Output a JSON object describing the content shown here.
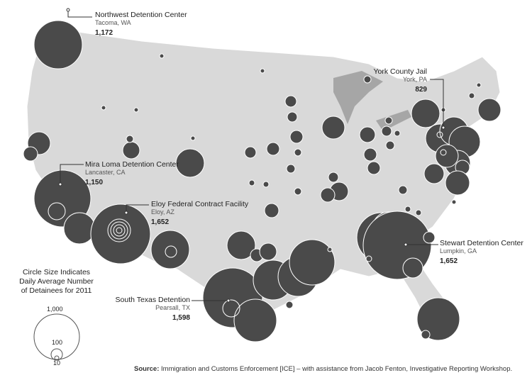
{
  "legend": {
    "title": "Circle Size Indicates Daily Average Number of Detainees for 2011",
    "sizes": [
      "1,000",
      "100",
      "10"
    ]
  },
  "facilities": [
    {
      "name": "Northwest Detention Center",
      "city": "Tacoma, WA",
      "value": "1,172"
    },
    {
      "name": "York County Jail",
      "city": "York, PA",
      "value": "829"
    },
    {
      "name": "Mira Loma Detention Center",
      "city": "Lancaster, CA",
      "value": "1,150"
    },
    {
      "name": "Eloy Federal Contract Facility",
      "city": "Eloy, AZ",
      "value": "1,652"
    },
    {
      "name": "Stewart Detention Center",
      "city": "Lumpkin, GA",
      "value": "1,652"
    },
    {
      "name": "South Texas Detention",
      "city": "Pearsall, TX",
      "value": "1,598"
    }
  ],
  "source": {
    "label": "Source:",
    "text": " Immigration and Customs Enforcement [ICE] – with assistance from Jacob Fenton, Investigative Reporting Workshop."
  },
  "colors": {
    "land": "#d9d9d9",
    "bubble": "#4a4a4a",
    "lakes": "#a6a6a6"
  }
}
